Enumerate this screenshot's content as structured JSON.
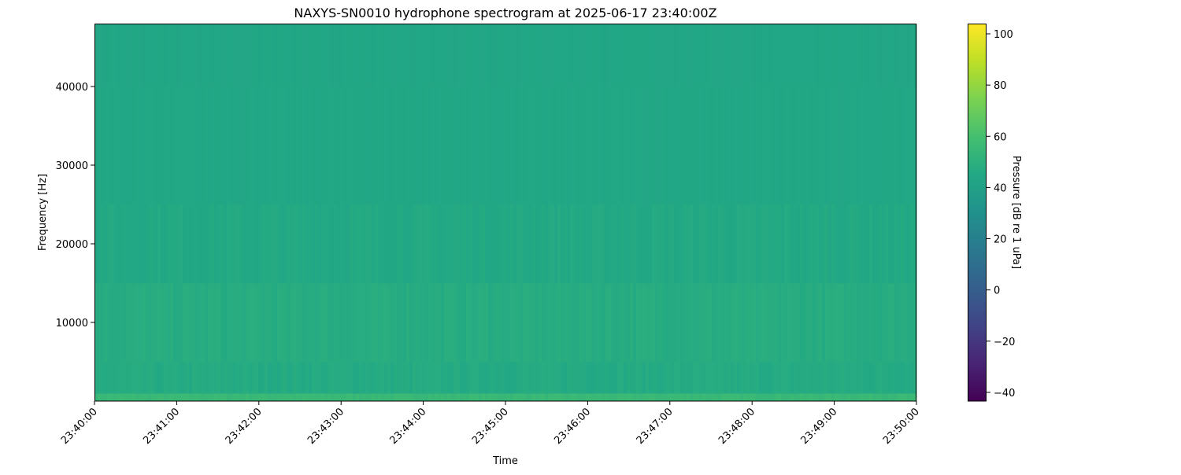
{
  "chart_data": {
    "type": "heatmap",
    "title": "NAXYS-SN0010 hydrophone spectrogram at 2025-06-17 23:40:00Z",
    "xlabel": "Time",
    "ylabel": "Frequency [Hz]",
    "xlim": [
      "23:40:00",
      "23:50:00"
    ],
    "ylim": [
      0,
      48000
    ],
    "x_ticks": [
      "23:40:00",
      "23:41:00",
      "23:42:00",
      "23:43:00",
      "23:44:00",
      "23:45:00",
      "23:46:00",
      "23:47:00",
      "23:48:00",
      "23:49:00",
      "23:50:00"
    ],
    "y_ticks": [
      10000,
      20000,
      30000,
      40000
    ],
    "colormap": "viridis",
    "colorbar": {
      "label": "Pressure [dB re 1 uPa]",
      "range": [
        -43.4,
        104
      ],
      "ticks": [
        -40,
        -20,
        0,
        20,
        40,
        60,
        80,
        100
      ]
    },
    "frequency_bands_hz": [
      [
        0,
        1000
      ],
      [
        1000,
        5000
      ],
      [
        5000,
        15000
      ],
      [
        15000,
        25000
      ],
      [
        25000,
        40000
      ],
      [
        40000,
        48000
      ]
    ],
    "band_mean_db": [
      55,
      46.5,
      47.5,
      45.5,
      44.5,
      44
    ],
    "grid": false
  }
}
